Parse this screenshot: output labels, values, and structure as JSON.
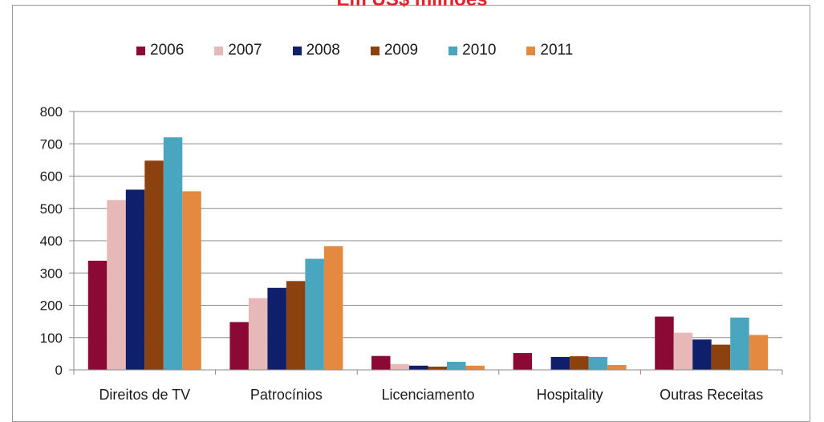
{
  "chart_data": {
    "type": "bar",
    "title": "Em US$ milhões",
    "categories": [
      "Direitos de TV",
      "Patrocínios",
      "Licenciamento",
      "Hospitality",
      "Outras Receitas"
    ],
    "series": [
      {
        "name": "2006",
        "color": "#8b0a35",
        "values": [
          338,
          148,
          43,
          52,
          165
        ]
      },
      {
        "name": "2007",
        "color": "#e6b8b8",
        "values": [
          526,
          222,
          18,
          0,
          115
        ]
      },
      {
        "name": "2008",
        "color": "#0f1f6b",
        "values": [
          558,
          254,
          13,
          40,
          94
        ]
      },
      {
        "name": "2009",
        "color": "#8b420f",
        "values": [
          648,
          275,
          10,
          42,
          78
        ]
      },
      {
        "name": "2010",
        "color": "#4aa6be",
        "values": [
          720,
          344,
          25,
          40,
          162
        ]
      },
      {
        "name": "2011",
        "color": "#e38a40",
        "values": [
          553,
          383,
          13,
          15,
          108
        ]
      }
    ],
    "yticks": [
      "0",
      "100",
      "200",
      "300",
      "400",
      "500",
      "600",
      "700",
      "800"
    ],
    "ylim": [
      0,
      800
    ],
    "grid": true,
    "legend_position": "top"
  }
}
